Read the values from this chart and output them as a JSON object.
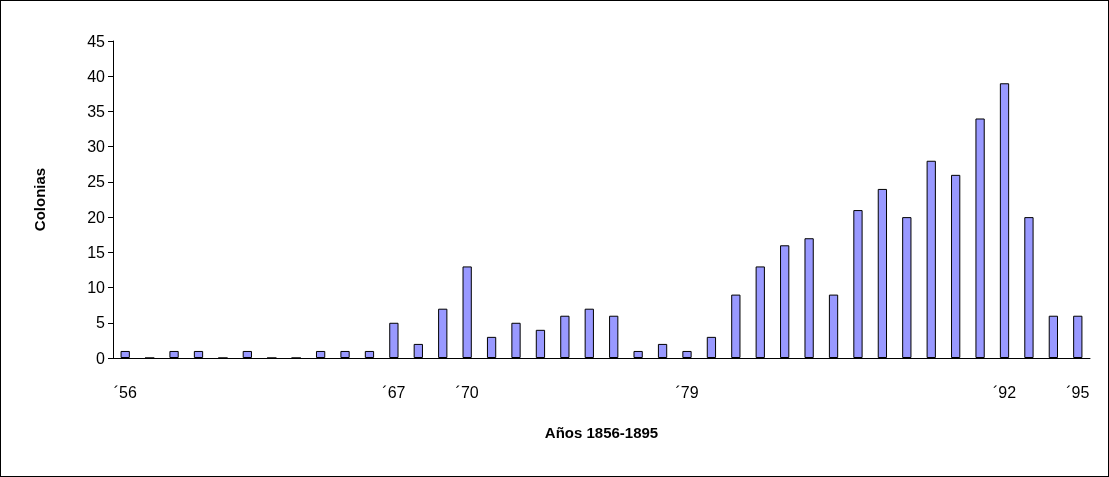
{
  "chart_data": {
    "type": "bar",
    "xlabel": "Años 1856-1895",
    "ylabel": "Colonias",
    "categories": [
      "´56",
      null,
      null,
      null,
      null,
      null,
      null,
      null,
      null,
      null,
      null,
      "´67",
      null,
      null,
      "´70",
      null,
      null,
      null,
      null,
      null,
      null,
      null,
      null,
      "´79",
      null,
      null,
      null,
      null,
      null,
      null,
      null,
      null,
      null,
      null,
      null,
      null,
      "´92",
      null,
      null,
      "´95"
    ],
    "values": [
      1,
      0,
      1,
      1,
      0,
      1,
      0,
      0,
      1,
      1,
      1,
      5,
      2,
      7,
      13,
      3,
      5,
      4,
      6,
      7,
      6,
      1,
      2,
      1,
      3,
      9,
      13,
      16,
      17,
      9,
      21,
      24,
      20,
      28,
      26,
      34,
      39,
      20,
      6,
      6
    ],
    "color": "#9999ff",
    "ylim": [
      0,
      45
    ],
    "yticks": [
      0,
      5,
      10,
      15,
      20,
      25,
      30,
      35,
      40,
      45
    ],
    "grid": false
  }
}
